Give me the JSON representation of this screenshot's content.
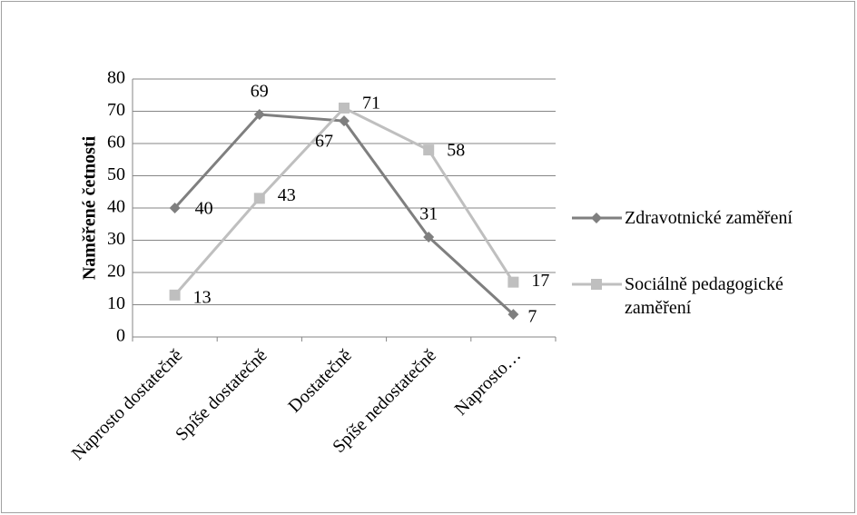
{
  "chart_data": {
    "type": "line",
    "y_label": "Naměřené četnosti",
    "categories": [
      "Naprosto dostatečně",
      "Spíše dostatečně",
      "Dostatečně",
      "Spíše nedostatečně",
      "Naprosto…"
    ],
    "series": [
      {
        "name": "Zdravotnické zaměření",
        "color": "#7f7f7f",
        "marker": "diamond",
        "values": [
          40,
          69,
          67,
          31,
          7
        ]
      },
      {
        "name": "Sociálně pedagogické zaměření",
        "color": "#bfbfbf",
        "marker": "square",
        "values": [
          13,
          43,
          71,
          58,
          17
        ]
      }
    ],
    "ylim": [
      0,
      80
    ],
    "yticks": [
      0,
      10,
      20,
      30,
      40,
      50,
      60,
      70,
      80
    ],
    "grid": true,
    "legend": "right"
  }
}
